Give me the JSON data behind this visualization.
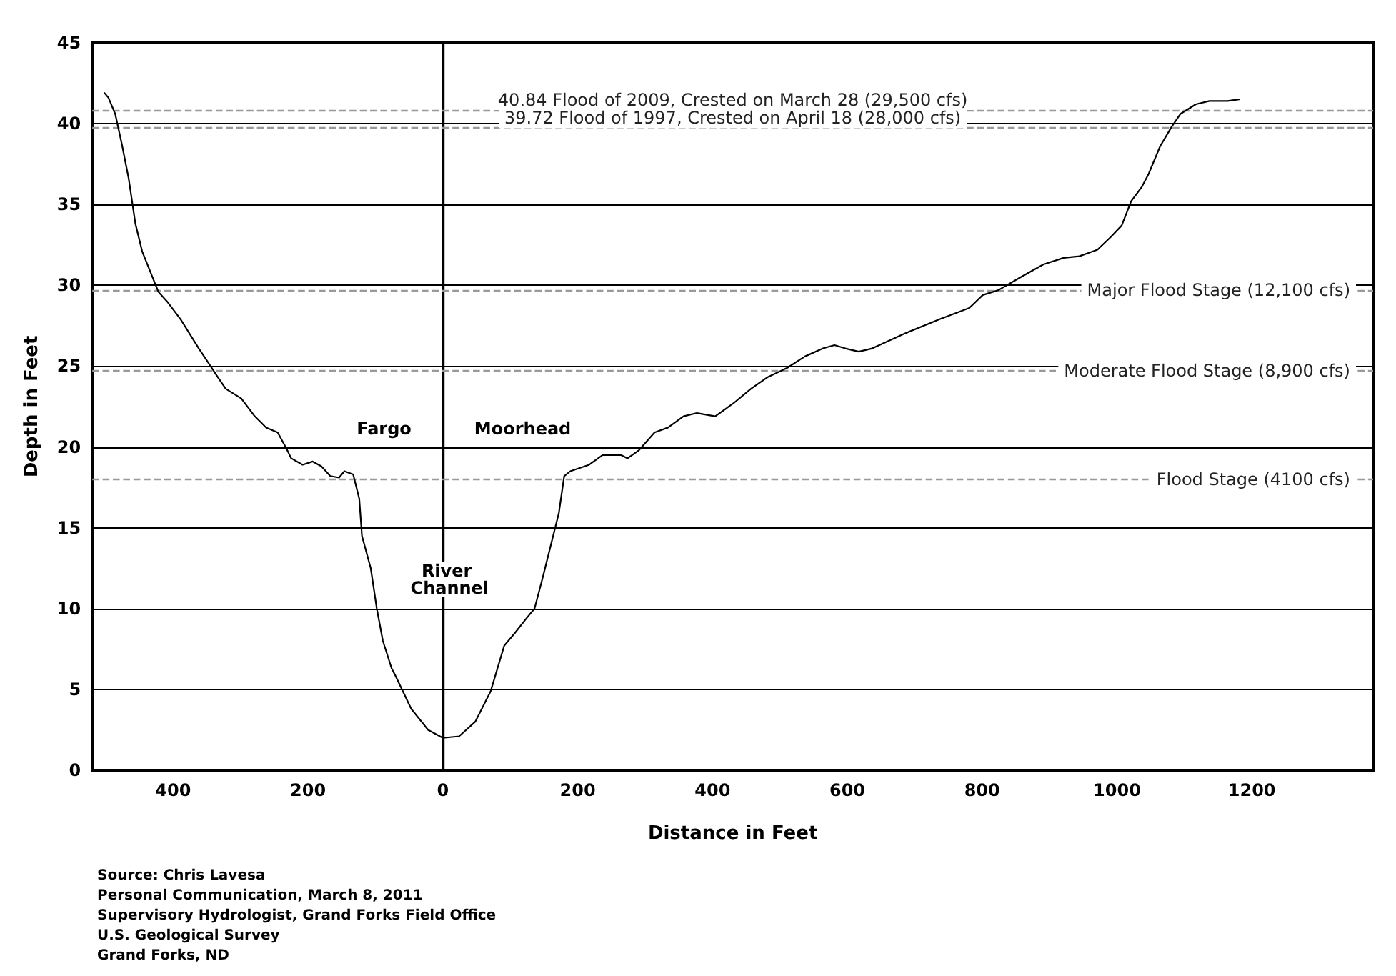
{
  "chart_data": {
    "type": "line",
    "xlabel": "Distance in Feet",
    "ylabel": "Depth in Feet",
    "xlim": [
      -520,
      1380
    ],
    "ylim": [
      0,
      45
    ],
    "xticks": [
      {
        "value": -400,
        "label": "400"
      },
      {
        "value": -200,
        "label": "200"
      },
      0,
      200,
      400,
      600,
      800,
      1000,
      1200
    ],
    "yticks": [
      0,
      5,
      10,
      15,
      20,
      25,
      30,
      35,
      40,
      45
    ],
    "grid": "y",
    "marker": "none",
    "line_style": "solid",
    "series": [
      {
        "color": "#000000",
        "x": [
          -502,
          -496,
          -486,
          -476,
          -466,
          -456,
          -446,
          -422,
          -409,
          -389,
          -362,
          -335,
          -322,
          -299,
          -279,
          -262,
          -245,
          -232,
          -225,
          -208,
          -193,
          -180,
          -167,
          -154,
          -146,
          -133,
          -124,
          -120,
          -107,
          -98,
          -89,
          -76,
          -71,
          -47,
          -22,
          0,
          24,
          48,
          71,
          91,
          107,
          124,
          136,
          148,
          160,
          172,
          180,
          189,
          217,
          237,
          264,
          274,
          291,
          314,
          334,
          357,
          377,
          404,
          431,
          457,
          481,
          511,
          537,
          564,
          581,
          597,
          617,
          637,
          684,
          737,
          781,
          801,
          824,
          857,
          891,
          921,
          944,
          971,
          991,
          1007,
          1021,
          1037,
          1047,
          1064,
          1081,
          1094,
          1117,
          1137,
          1164,
          1181
        ],
        "values": [
          41.9,
          41.6,
          40.6,
          38.7,
          36.6,
          33.8,
          32.1,
          29.6,
          29.0,
          27.9,
          26.1,
          24.4,
          23.6,
          23.0,
          21.9,
          21.2,
          20.9,
          19.9,
          19.3,
          18.9,
          19.1,
          18.8,
          18.2,
          18.1,
          18.5,
          18.3,
          16.8,
          14.5,
          12.5,
          10.0,
          8.0,
          6.3,
          5.9,
          3.8,
          2.5,
          2.0,
          2.1,
          3.0,
          4.9,
          7.7,
          8.5,
          9.4,
          10.0,
          11.9,
          13.9,
          15.9,
          18.2,
          18.5,
          18.9,
          19.5,
          19.5,
          19.3,
          19.8,
          20.9,
          21.2,
          21.9,
          22.1,
          21.9,
          22.7,
          23.6,
          24.3,
          24.9,
          25.6,
          26.1,
          26.3,
          26.1,
          25.9,
          26.1,
          27.0,
          27.9,
          28.6,
          29.4,
          29.7,
          30.5,
          31.3,
          31.7,
          31.8,
          32.2,
          33.0,
          33.7,
          35.2,
          36.1,
          36.9,
          38.6,
          39.8,
          40.6,
          41.2,
          41.4,
          41.4,
          41.5
        ]
      }
    ],
    "ref_lines": [
      {
        "axis": "x",
        "value": 0,
        "label": null,
        "color": "#000000",
        "line_style": "solid"
      },
      {
        "axis": "y",
        "value": 40.84,
        "label": "40.84 Flood of 2009, Crested on March 28 (29,500 cfs)",
        "color": "#999999",
        "line_style": "dashed"
      },
      {
        "axis": "y",
        "value": 39.72,
        "label": "39.72 Flood of 1997, Crested on April 18 (28,000 cfs)",
        "color": "#999999",
        "line_style": "dashed"
      },
      {
        "axis": "y",
        "value": 29.7,
        "label": "Major Flood Stage (12,100 cfs)",
        "color": "#999999",
        "line_style": "dashed"
      },
      {
        "axis": "y",
        "value": 24.7,
        "label": "Moderate Flood Stage (8,900 cfs)",
        "color": "#999999",
        "line_style": "dashed"
      },
      {
        "axis": "y",
        "value": 18,
        "label": "Flood Stage (4100 cfs)",
        "color": "#999999",
        "line_style": "dashed"
      }
    ],
    "annotations": [
      "Fargo",
      "Moorhead",
      {
        "text": "River Channel",
        "x": 10,
        "y": 11.8
      },
      "Source: Chris Lavesa",
      "Personal Communication, March 8, 2011",
      "Supervisory Hydrologist, Grand Forks Field Office",
      "U.S. Geological Survey",
      "Grand Forks, ND"
    ]
  }
}
